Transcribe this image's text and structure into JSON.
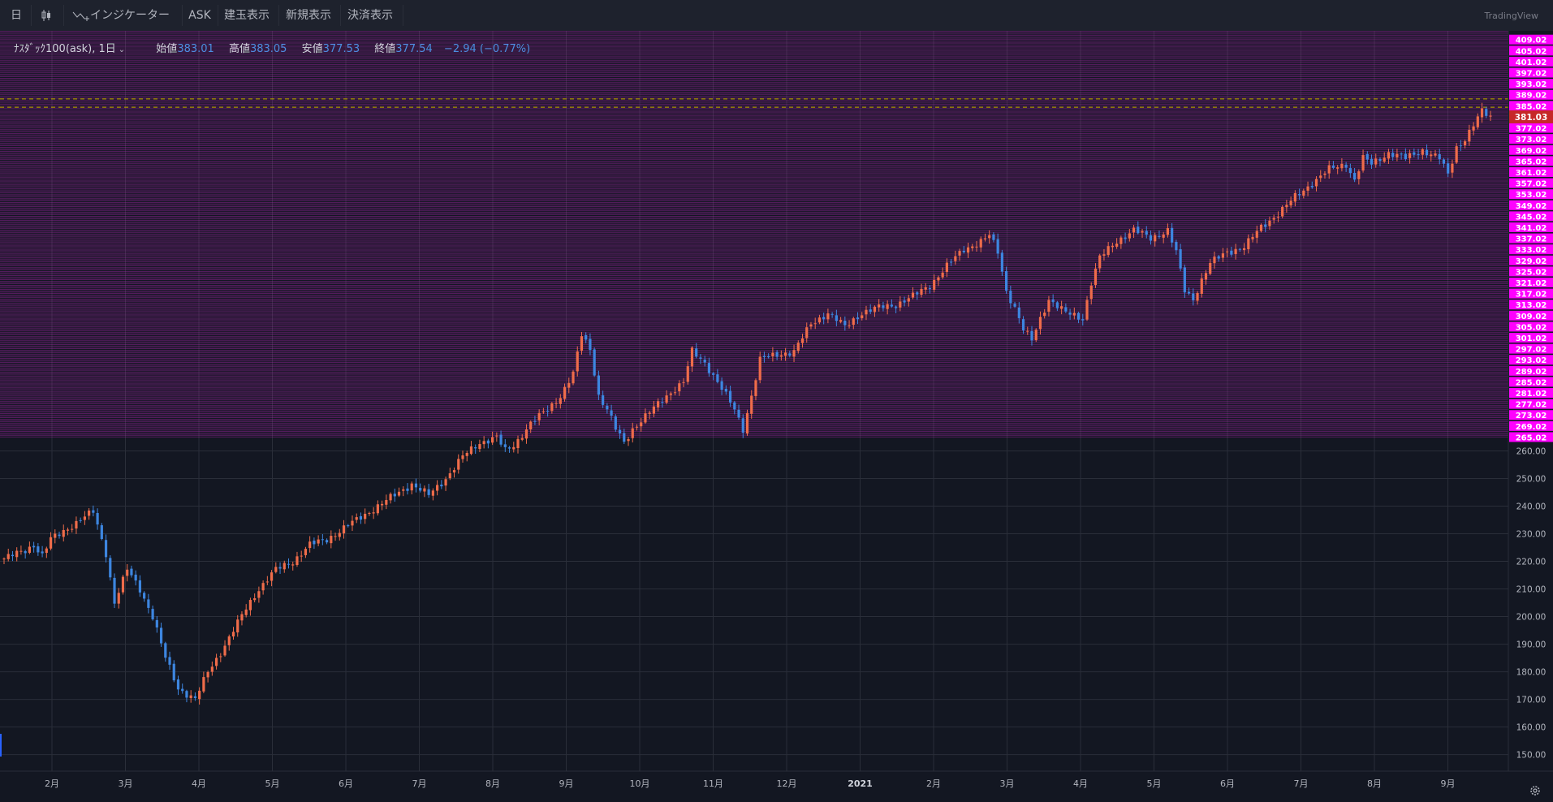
{
  "toolbar": {
    "interval": "日",
    "indicators": "インジケーター",
    "ask": "ASK",
    "position_display": "建玉表示",
    "new_display": "新規表示",
    "settle_display": "決済表示",
    "brand": "TradingView"
  },
  "legend": {
    "symbol": "ﾅｽﾀﾞｯｸ100(ask), 1日",
    "open_label": "始値",
    "open": "383.01",
    "high_label": "高値",
    "high": "383.05",
    "low_label": "安値",
    "low": "377.53",
    "close_label": "終値",
    "close": "377.54",
    "change": "−2.94 (−0.77%)"
  },
  "colors": {
    "up": "#ef6c4a",
    "down": "#3d86e0",
    "grid": "#2a2e39",
    "level": "#b026b0",
    "level_label_bg": "#ff00ff",
    "dashed": "#d4b200",
    "price_tag": "#c62828"
  },
  "chart_data": {
    "type": "candlestick",
    "title": "ﾅｽﾀﾞｯｸ100(ask), 1日",
    "ylim": [
      144,
      411
    ],
    "y_ticks": [
      150,
      160,
      170,
      180,
      190,
      200,
      210,
      220,
      230,
      240,
      250,
      260
    ],
    "y_tick_labels": [
      "150.00",
      "160.00",
      "170.00",
      "180.00",
      "190.00",
      "200.00",
      "210.00",
      "220.00",
      "230.00",
      "240.00",
      "250.00",
      "260.00"
    ],
    "x_labels": [
      "2月",
      "3月",
      "4月",
      "5月",
      "6月",
      "7月",
      "8月",
      "9月",
      "10月",
      "11月",
      "12月",
      "2021",
      "2月",
      "3月",
      "4月",
      "5月",
      "6月",
      "7月",
      "8月",
      "9月"
    ],
    "level_start": 265.02,
    "level_step": 4,
    "level_count": 37,
    "level_line_step": 0.5,
    "dashed_levels": [
      387.5,
      384.5
    ],
    "last_price": "381.03",
    "last_price_value": 381.03,
    "grid": true,
    "price_path": [
      [
        0,
        221
      ],
      [
        5,
        224
      ],
      [
        7,
        226
      ],
      [
        9,
        222
      ],
      [
        11,
        228
      ],
      [
        15,
        232
      ],
      [
        21,
        238
      ],
      [
        22,
        233
      ],
      [
        24,
        223
      ],
      [
        26,
        205
      ],
      [
        29,
        217
      ],
      [
        32,
        210
      ],
      [
        35,
        200
      ],
      [
        38,
        185
      ],
      [
        41,
        174
      ],
      [
        45,
        170
      ],
      [
        48,
        180
      ],
      [
        51,
        187
      ],
      [
        54,
        195
      ],
      [
        57,
        203
      ],
      [
        60,
        210
      ],
      [
        64,
        217
      ],
      [
        68,
        220
      ],
      [
        72,
        226
      ],
      [
        76,
        228
      ],
      [
        80,
        232
      ],
      [
        84,
        236
      ],
      [
        88,
        240
      ],
      [
        92,
        244
      ],
      [
        96,
        248
      ],
      [
        100,
        244
      ],
      [
        104,
        250
      ],
      [
        108,
        258
      ],
      [
        112,
        263
      ],
      [
        116,
        265
      ],
      [
        118,
        260
      ],
      [
        120,
        262
      ],
      [
        124,
        270
      ],
      [
        128,
        275
      ],
      [
        131,
        280
      ],
      [
        134,
        288
      ],
      [
        136,
        302
      ],
      [
        138,
        297
      ],
      [
        140,
        280
      ],
      [
        142,
        275
      ],
      [
        144,
        268
      ],
      [
        146,
        263
      ],
      [
        148,
        268
      ],
      [
        152,
        274
      ],
      [
        156,
        280
      ],
      [
        160,
        285
      ],
      [
        162,
        296
      ],
      [
        165,
        292
      ],
      [
        168,
        285
      ],
      [
        170,
        280
      ],
      [
        172,
        275
      ],
      [
        174,
        268
      ],
      [
        176,
        280
      ],
      [
        178,
        293
      ],
      [
        182,
        295
      ],
      [
        186,
        296
      ],
      [
        190,
        306
      ],
      [
        194,
        310
      ],
      [
        198,
        305
      ],
      [
        202,
        310
      ],
      [
        206,
        312
      ],
      [
        210,
        313
      ],
      [
        214,
        316
      ],
      [
        218,
        320
      ],
      [
        222,
        327
      ],
      [
        226,
        333
      ],
      [
        230,
        336
      ],
      [
        232,
        338
      ],
      [
        234,
        332
      ],
      [
        236,
        318
      ],
      [
        238,
        312
      ],
      [
        240,
        304
      ],
      [
        242,
        300
      ],
      [
        244,
        308
      ],
      [
        246,
        315
      ],
      [
        250,
        310
      ],
      [
        254,
        308
      ],
      [
        256,
        321
      ],
      [
        258,
        330
      ],
      [
        262,
        336
      ],
      [
        266,
        340
      ],
      [
        270,
        337
      ],
      [
        274,
        340
      ],
      [
        276,
        332
      ],
      [
        278,
        318
      ],
      [
        280,
        315
      ],
      [
        282,
        322
      ],
      [
        284,
        328
      ],
      [
        288,
        332
      ],
      [
        292,
        334
      ],
      [
        296,
        341
      ],
      [
        300,
        346
      ],
      [
        304,
        352
      ],
      [
        308,
        357
      ],
      [
        312,
        362
      ],
      [
        316,
        364
      ],
      [
        318,
        358
      ],
      [
        320,
        366
      ],
      [
        322,
        364
      ],
      [
        326,
        368
      ],
      [
        330,
        366
      ],
      [
        334,
        369
      ],
      [
        338,
        366
      ],
      [
        340,
        360
      ],
      [
        342,
        370
      ],
      [
        344,
        373
      ],
      [
        346,
        378
      ],
      [
        348,
        383
      ],
      [
        350,
        381
      ]
    ]
  }
}
